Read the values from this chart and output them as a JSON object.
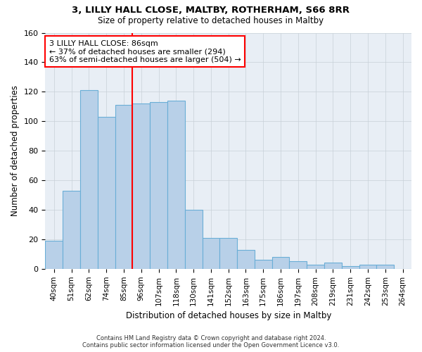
{
  "title_line1": "3, LILLY HALL CLOSE, MALTBY, ROTHERHAM, S66 8RR",
  "title_line2": "Size of property relative to detached houses in Maltby",
  "xlabel": "Distribution of detached houses by size in Maltby",
  "ylabel": "Number of detached properties",
  "categories": [
    "40sqm",
    "51sqm",
    "62sqm",
    "74sqm",
    "85sqm",
    "96sqm",
    "107sqm",
    "118sqm",
    "130sqm",
    "141sqm",
    "152sqm",
    "163sqm",
    "175sqm",
    "186sqm",
    "197sqm",
    "208sqm",
    "219sqm",
    "231sqm",
    "242sqm",
    "253sqm",
    "264sqm"
  ],
  "values": [
    19,
    53,
    121,
    103,
    111,
    112,
    113,
    114,
    40,
    21,
    21,
    13,
    6,
    8,
    5,
    3,
    4,
    2,
    3,
    3,
    0
  ],
  "bar_color": "#b8d0e8",
  "bar_edge_color": "#6aaed6",
  "bar_width": 1.0,
  "property_line_x": 4.5,
  "annotation_line1": "3 LILLY HALL CLOSE: 86sqm",
  "annotation_line2": "← 37% of detached houses are smaller (294)",
  "annotation_line3": "63% of semi-detached houses are larger (504) →",
  "annotation_box_color": "white",
  "annotation_box_edge_color": "red",
  "vline_color": "red",
  "ylim": [
    0,
    160
  ],
  "yticks": [
    0,
    20,
    40,
    60,
    80,
    100,
    120,
    140,
    160
  ],
  "grid_color": "#c8d0d8",
  "background_color": "white",
  "axes_bg_color": "#e8eef5",
  "footer_line1": "Contains HM Land Registry data © Crown copyright and database right 2024.",
  "footer_line2": "Contains public sector information licensed under the Open Government Licence v3.0."
}
